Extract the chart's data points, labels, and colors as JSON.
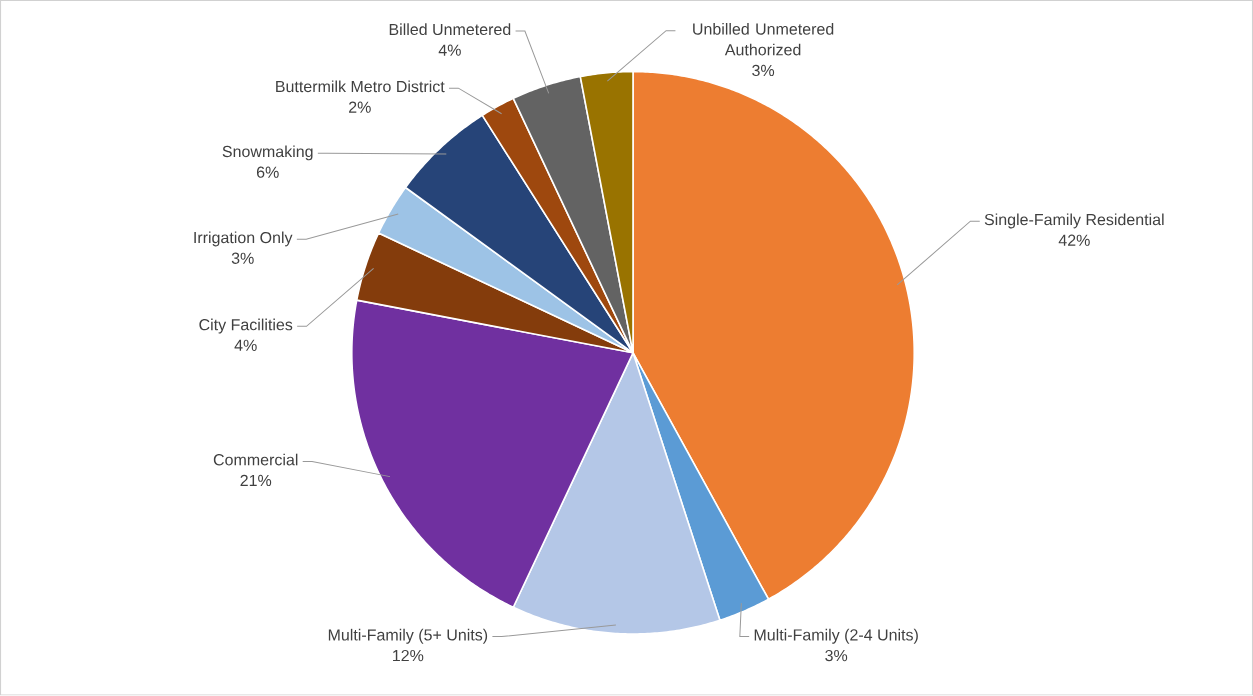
{
  "chart_data": {
    "type": "pie",
    "categories": [
      "Single-Family Residential",
      "Multi-Family (2-4 Units)",
      "Multi-Family (5+ Units)",
      "Commercial",
      "City Facilities",
      "Irrigation Only",
      "Snowmaking",
      "Buttermilk Metro District",
      "Billed Unmetered",
      "Unbilled Unmetered Authorized"
    ],
    "values": [
      42,
      3,
      12,
      21,
      4,
      3,
      6,
      2,
      4,
      3
    ],
    "colors": [
      "#ed7d31",
      "#5b9bd5",
      "#b4c7e7",
      "#7030a0",
      "#843c0c",
      "#9dc3e6",
      "#264478",
      "#9e480e",
      "#636363",
      "#997300"
    ],
    "value_labels": [
      "42%",
      "3%",
      "12%",
      "21%",
      "4%",
      "3%",
      "6%",
      "2%",
      "4%",
      "3%"
    ]
  }
}
